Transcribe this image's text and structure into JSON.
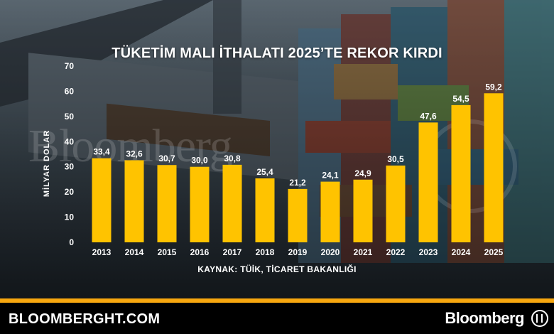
{
  "header": {
    "title": "TÜKETİM MALI İTHALATI 2025’TE REKOR KIRDI"
  },
  "source_note": "KAYNAK: TÜİK, TİCARET BAKANLIĞI",
  "watermark": "Bloomberg",
  "footer": {
    "site": "BLOOMBERGHT.COM",
    "brand": "Bloomberg"
  },
  "colors": {
    "bar": "#ffc300",
    "accent_strip": "#f7a70f",
    "text": "#ffffff"
  },
  "chart_data": {
    "type": "bar",
    "title": "TÜKETİM MALI İTHALATI 2025’TE REKOR KIRDI",
    "xlabel": "",
    "ylabel": "MİLYAR DOLAR",
    "categories": [
      "2013",
      "2014",
      "2015",
      "2016",
      "2017",
      "2018",
      "2019",
      "2020",
      "2021",
      "2022",
      "2023",
      "2024",
      "2025"
    ],
    "values": [
      33.4,
      32.6,
      30.7,
      30.0,
      30.8,
      25.4,
      21.2,
      24.1,
      24.9,
      30.5,
      47.6,
      54.5,
      59.2
    ],
    "value_labels": [
      "33,4",
      "32,6",
      "30,7",
      "30,0",
      "30,8",
      "25,4",
      "21,2",
      "24,1",
      "24,9",
      "30,5",
      "47,6",
      "54,5",
      "59,2"
    ],
    "yticks": [
      0,
      10,
      20,
      30,
      40,
      50,
      60,
      70
    ],
    "ylim": [
      0,
      70
    ],
    "grid": false,
    "legend": "none"
  }
}
